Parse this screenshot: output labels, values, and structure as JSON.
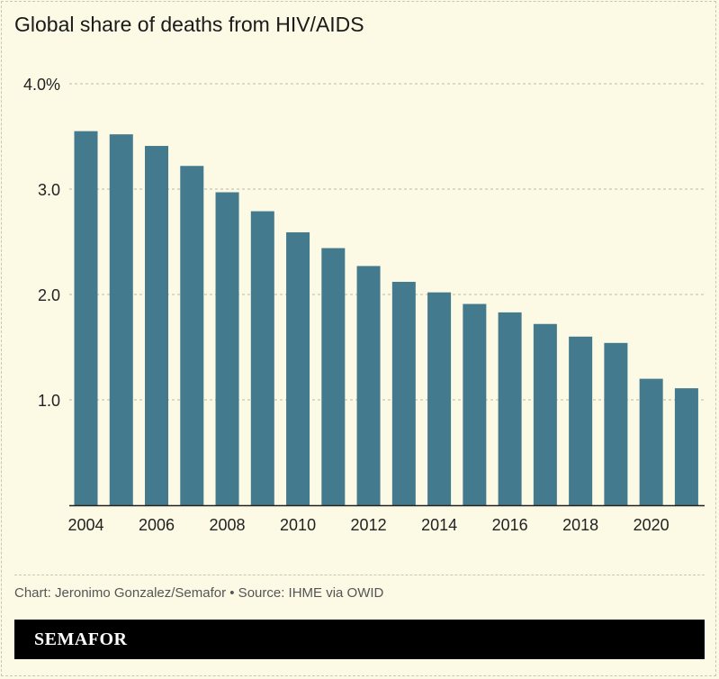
{
  "chart_data": {
    "type": "bar",
    "title": "Global share of deaths from HIV/AIDS",
    "categories": [
      "2004",
      "2005",
      "2006",
      "2007",
      "2008",
      "2009",
      "2010",
      "2011",
      "2012",
      "2013",
      "2014",
      "2015",
      "2016",
      "2017",
      "2018",
      "2019",
      "2020",
      "2021"
    ],
    "values": [
      3.55,
      3.52,
      3.41,
      3.22,
      2.97,
      2.79,
      2.59,
      2.44,
      2.27,
      2.12,
      2.02,
      1.91,
      1.83,
      1.72,
      1.6,
      1.54,
      1.2,
      1.11
    ],
    "x_tick_labels": [
      "2004",
      "2006",
      "2008",
      "2010",
      "2012",
      "2014",
      "2016",
      "2018",
      "2020"
    ],
    "y_ticks": [
      1.0,
      2.0,
      3.0,
      4.0
    ],
    "y_tick_labels": [
      "1.0",
      "2.0",
      "3.0",
      "4.0%"
    ],
    "ylim": [
      0,
      4.0
    ],
    "xlabel": "",
    "ylabel": "",
    "grid": true,
    "bar_color": "#447a8d",
    "background_color": "#fcf9e5"
  },
  "footer": {
    "credit": "Chart: Jeronimo Gonzalez/Semafor • Source: IHME via OWID",
    "brand": "SEMAFOR"
  }
}
